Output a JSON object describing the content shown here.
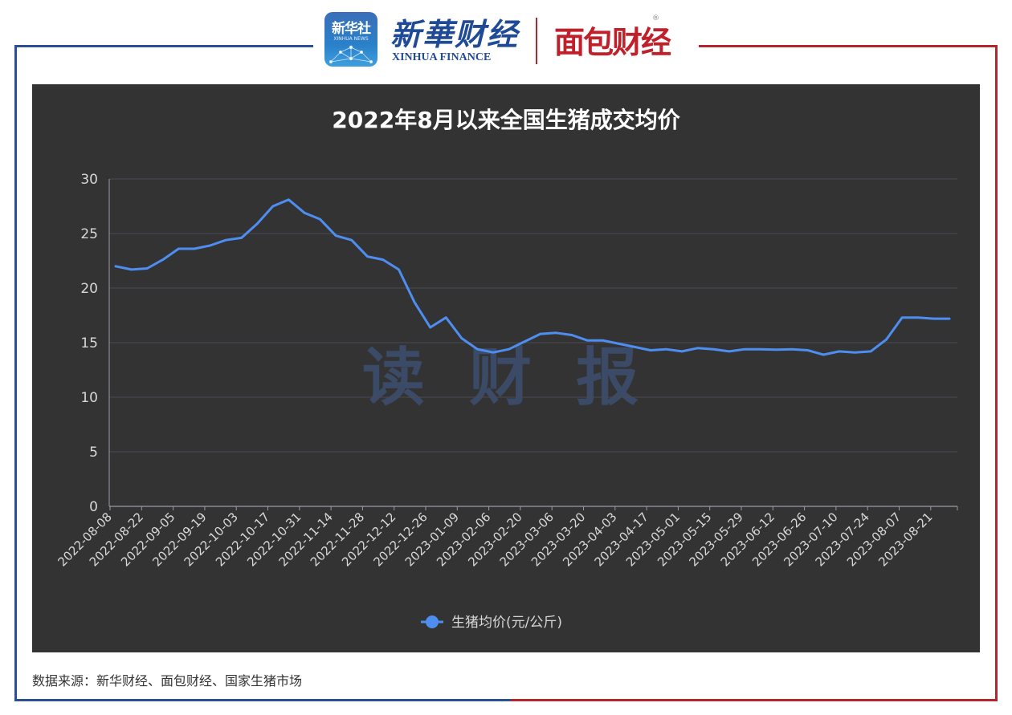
{
  "header": {
    "xinhua_icon_title": "新华社",
    "xinhua_icon_sub": "XINHUA NEWS",
    "brand_cn": "新華财经",
    "brand_en": "XINHUA FINANCE",
    "partner_brand": "面包财经",
    "registered_mark": "®"
  },
  "watermark": "读 财 报",
  "footer": {
    "source": "数据来源：新华财经、面包财经、国家生猪市场"
  },
  "colors": {
    "frame_left": "#2a4f95",
    "frame_right": "#b3262d",
    "panel_bg": "#333333",
    "line": "#4e8ef0",
    "grid": "#4a4a55",
    "text": "#d8d8d8",
    "title": "#ffffff",
    "watermark": "#3b4a66"
  },
  "chart_data": {
    "type": "line",
    "title": "2022年8月以来全国生猪成交均价",
    "xlabel": "",
    "ylabel": "",
    "ylim": [
      0,
      30
    ],
    "yticks": [
      0,
      5,
      10,
      15,
      20,
      25,
      30
    ],
    "grid": true,
    "legend_position": "bottom-center",
    "x_tick_labels": [
      "2022-08-08",
      "2022-08-22",
      "2022-09-05",
      "2022-09-19",
      "2022-10-03",
      "2022-10-17",
      "2022-10-31",
      "2022-11-14",
      "2022-11-28",
      "2022-12-12",
      "2022-12-26",
      "2023-01-09",
      "2023-02-06",
      "2023-02-20",
      "2023-03-06",
      "2023-03-20",
      "2023-04-03",
      "2023-04-17",
      "2023-05-01",
      "2023-05-15",
      "2023-05-29",
      "2023-06-12",
      "2023-06-26",
      "2023-07-10",
      "2023-07-24",
      "2023-08-07",
      "2023-08-21"
    ],
    "series": [
      {
        "name": "生猪均价(元/公斤)",
        "values": [
          22.0,
          21.7,
          21.8,
          22.6,
          23.6,
          23.6,
          23.9,
          24.4,
          24.6,
          25.9,
          27.5,
          28.1,
          26.9,
          26.3,
          24.8,
          24.4,
          22.9,
          22.6,
          21.7,
          18.7,
          16.4,
          17.3,
          15.4,
          14.4,
          14.1,
          14.4,
          15.1,
          15.8,
          15.9,
          15.7,
          15.2,
          15.2,
          14.9,
          14.6,
          14.3,
          14.4,
          14.2,
          14.5,
          14.4,
          14.2,
          14.4,
          14.4,
          14.35,
          14.4,
          14.3,
          13.9,
          14.2,
          14.1,
          14.2,
          15.3,
          17.3,
          17.3,
          17.2,
          17.2
        ]
      }
    ]
  }
}
